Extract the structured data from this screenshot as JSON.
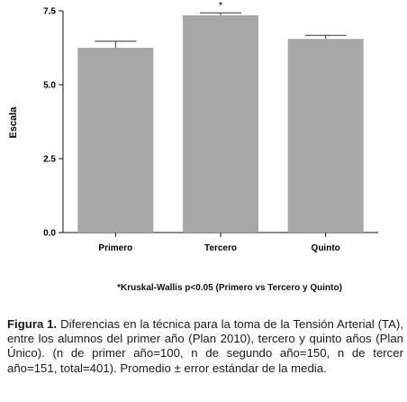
{
  "chart_data": {
    "type": "bar",
    "categories": [
      "Primero",
      "Tercero",
      "Quinto"
    ],
    "values": [
      6.25,
      7.35,
      6.55
    ],
    "errors": [
      0.22,
      0.08,
      0.12
    ],
    "annotations": [
      "",
      "*",
      ""
    ],
    "ylabel": "Escala",
    "xlabel": "",
    "ylim": [
      0,
      7.5
    ],
    "yticks": [
      "0.0",
      "2.5",
      "5.0",
      "7.5"
    ],
    "ytick_values": [
      0,
      2.5,
      5.0,
      7.5
    ],
    "bar_color": "#a8a8a8",
    "grid": false
  },
  "footnote": "*Kruskal-Wallis p<0.05 (Primero vs Tercero y Quinto)",
  "caption": {
    "label": "Figura 1.",
    "text": " Diferencias en la técnica para la toma de la Tensión Arterial (TA), entre los alumnos del primer año (Plan 2010), tercero y quinto años (Plan Único). (n de primer año=100, n de segundo año=150, n de tercer año=151, total=401). Promedio ± error estándar de la media."
  }
}
